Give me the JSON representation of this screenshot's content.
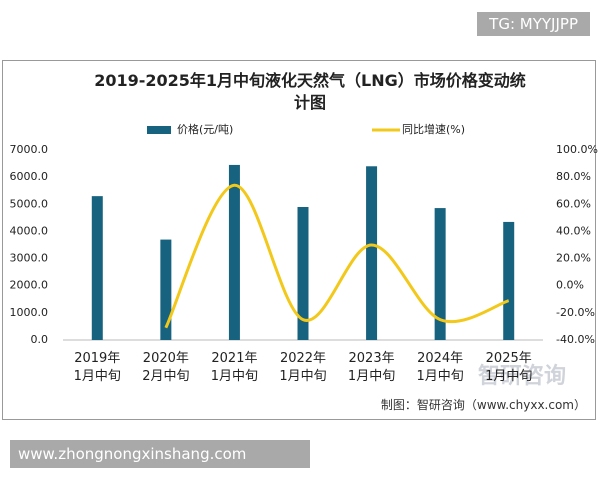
{
  "chart_data": {
    "type": "bar",
    "title": "2019-2025年1月中旬液化天然气（LNG）市场价格变动统计图",
    "categories": [
      "2019年1月中旬",
      "2020年2月中旬",
      "2021年1月中旬",
      "2022年1月中旬",
      "2023年1月中旬",
      "2024年1月中旬",
      "2025年1月中旬"
    ],
    "series": [
      {
        "name": "价格(元/吨)",
        "color": "#17627f",
        "values": [
          5300,
          3700,
          6450,
          4900,
          6400,
          4860,
          4350
        ]
      },
      {
        "name": "同比增速(%)",
        "color": "#f2c81a",
        "type": "line",
        "axis": "y2",
        "values": [
          null,
          -31,
          74,
          -25,
          30,
          -25,
          -11
        ]
      }
    ],
    "ylim": [
      0,
      7000
    ],
    "yticks": [
      {
        "value": 0,
        "label": "0.0"
      },
      {
        "value": 1000,
        "label": "1000.0"
      },
      {
        "value": 2000,
        "label": "2000.0"
      },
      {
        "value": 3000,
        "label": "3000.0"
      },
      {
        "value": 4000,
        "label": "4000.0"
      },
      {
        "value": 5000,
        "label": "5000.0"
      },
      {
        "value": 6000,
        "label": "6000.0"
      },
      {
        "value": 7000,
        "label": "7000.0"
      }
    ],
    "y2lim": [
      -40,
      100
    ],
    "y2ticks": [
      {
        "value": -40,
        "label": "-40.0%"
      },
      {
        "value": -20,
        "label": "-20.0%"
      },
      {
        "value": 0,
        "label": "0.0%"
      },
      {
        "value": 20,
        "label": "20.0%"
      },
      {
        "value": 40,
        "label": "40.0%"
      },
      {
        "value": 60,
        "label": "60.0%"
      },
      {
        "value": 80,
        "label": "80.0%"
      },
      {
        "value": 100,
        "label": "100.0%"
      }
    ],
    "source": "制图：智研咨询（www.chyxx.com）"
  },
  "watermarks": {
    "top": "TG: MYYJJPP",
    "bottom": "www.zhongnongxinshang.com",
    "logo": "智研咨询"
  }
}
